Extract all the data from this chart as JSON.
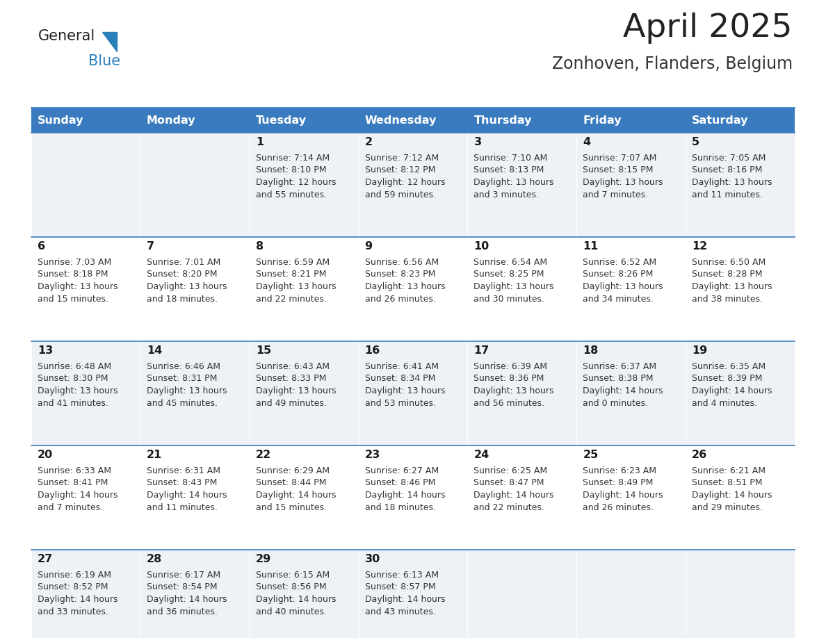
{
  "title": "April 2025",
  "subtitle": "Zonhoven, Flanders, Belgium",
  "header_bg": "#3a7bbf",
  "header_text": "#ffffff",
  "row_bg_odd": "#eef2f7",
  "row_bg_even": "#ffffff",
  "cell_border": "#3a7bbf",
  "day_headers": [
    "Sunday",
    "Monday",
    "Tuesday",
    "Wednesday",
    "Thursday",
    "Friday",
    "Saturday"
  ],
  "title_color": "#222222",
  "subtitle_color": "#333333",
  "cell_text_color": "#333333",
  "day_num_color": "#1a1a1a",
  "logo_color1": "#222222",
  "logo_color2": "#2980b9",
  "logo_triangle_color": "#2980b9",
  "calendar": [
    [
      {
        "day": "",
        "sunrise": "",
        "sunset": "",
        "daylight": ""
      },
      {
        "day": "",
        "sunrise": "",
        "sunset": "",
        "daylight": ""
      },
      {
        "day": "1",
        "sunrise": "7:14 AM",
        "sunset": "8:10 PM",
        "daylight": "12 hours\nand 55 minutes."
      },
      {
        "day": "2",
        "sunrise": "7:12 AM",
        "sunset": "8:12 PM",
        "daylight": "12 hours\nand 59 minutes."
      },
      {
        "day": "3",
        "sunrise": "7:10 AM",
        "sunset": "8:13 PM",
        "daylight": "13 hours\nand 3 minutes."
      },
      {
        "day": "4",
        "sunrise": "7:07 AM",
        "sunset": "8:15 PM",
        "daylight": "13 hours\nand 7 minutes."
      },
      {
        "day": "5",
        "sunrise": "7:05 AM",
        "sunset": "8:16 PM",
        "daylight": "13 hours\nand 11 minutes."
      }
    ],
    [
      {
        "day": "6",
        "sunrise": "7:03 AM",
        "sunset": "8:18 PM",
        "daylight": "13 hours\nand 15 minutes."
      },
      {
        "day": "7",
        "sunrise": "7:01 AM",
        "sunset": "8:20 PM",
        "daylight": "13 hours\nand 18 minutes."
      },
      {
        "day": "8",
        "sunrise": "6:59 AM",
        "sunset": "8:21 PM",
        "daylight": "13 hours\nand 22 minutes."
      },
      {
        "day": "9",
        "sunrise": "6:56 AM",
        "sunset": "8:23 PM",
        "daylight": "13 hours\nand 26 minutes."
      },
      {
        "day": "10",
        "sunrise": "6:54 AM",
        "sunset": "8:25 PM",
        "daylight": "13 hours\nand 30 minutes."
      },
      {
        "day": "11",
        "sunrise": "6:52 AM",
        "sunset": "8:26 PM",
        "daylight": "13 hours\nand 34 minutes."
      },
      {
        "day": "12",
        "sunrise": "6:50 AM",
        "sunset": "8:28 PM",
        "daylight": "13 hours\nand 38 minutes."
      }
    ],
    [
      {
        "day": "13",
        "sunrise": "6:48 AM",
        "sunset": "8:30 PM",
        "daylight": "13 hours\nand 41 minutes."
      },
      {
        "day": "14",
        "sunrise": "6:46 AM",
        "sunset": "8:31 PM",
        "daylight": "13 hours\nand 45 minutes."
      },
      {
        "day": "15",
        "sunrise": "6:43 AM",
        "sunset": "8:33 PM",
        "daylight": "13 hours\nand 49 minutes."
      },
      {
        "day": "16",
        "sunrise": "6:41 AM",
        "sunset": "8:34 PM",
        "daylight": "13 hours\nand 53 minutes."
      },
      {
        "day": "17",
        "sunrise": "6:39 AM",
        "sunset": "8:36 PM",
        "daylight": "13 hours\nand 56 minutes."
      },
      {
        "day": "18",
        "sunrise": "6:37 AM",
        "sunset": "8:38 PM",
        "daylight": "14 hours\nand 0 minutes."
      },
      {
        "day": "19",
        "sunrise": "6:35 AM",
        "sunset": "8:39 PM",
        "daylight": "14 hours\nand 4 minutes."
      }
    ],
    [
      {
        "day": "20",
        "sunrise": "6:33 AM",
        "sunset": "8:41 PM",
        "daylight": "14 hours\nand 7 minutes."
      },
      {
        "day": "21",
        "sunrise": "6:31 AM",
        "sunset": "8:43 PM",
        "daylight": "14 hours\nand 11 minutes."
      },
      {
        "day": "22",
        "sunrise": "6:29 AM",
        "sunset": "8:44 PM",
        "daylight": "14 hours\nand 15 minutes."
      },
      {
        "day": "23",
        "sunrise": "6:27 AM",
        "sunset": "8:46 PM",
        "daylight": "14 hours\nand 18 minutes."
      },
      {
        "day": "24",
        "sunrise": "6:25 AM",
        "sunset": "8:47 PM",
        "daylight": "14 hours\nand 22 minutes."
      },
      {
        "day": "25",
        "sunrise": "6:23 AM",
        "sunset": "8:49 PM",
        "daylight": "14 hours\nand 26 minutes."
      },
      {
        "day": "26",
        "sunrise": "6:21 AM",
        "sunset": "8:51 PM",
        "daylight": "14 hours\nand 29 minutes."
      }
    ],
    [
      {
        "day": "27",
        "sunrise": "6:19 AM",
        "sunset": "8:52 PM",
        "daylight": "14 hours\nand 33 minutes."
      },
      {
        "day": "28",
        "sunrise": "6:17 AM",
        "sunset": "8:54 PM",
        "daylight": "14 hours\nand 36 minutes."
      },
      {
        "day": "29",
        "sunrise": "6:15 AM",
        "sunset": "8:56 PM",
        "daylight": "14 hours\nand 40 minutes."
      },
      {
        "day": "30",
        "sunrise": "6:13 AM",
        "sunset": "8:57 PM",
        "daylight": "14 hours\nand 43 minutes."
      },
      {
        "day": "",
        "sunrise": "",
        "sunset": "",
        "daylight": ""
      },
      {
        "day": "",
        "sunrise": "",
        "sunset": "",
        "daylight": ""
      },
      {
        "day": "",
        "sunrise": "",
        "sunset": "",
        "daylight": ""
      }
    ]
  ]
}
